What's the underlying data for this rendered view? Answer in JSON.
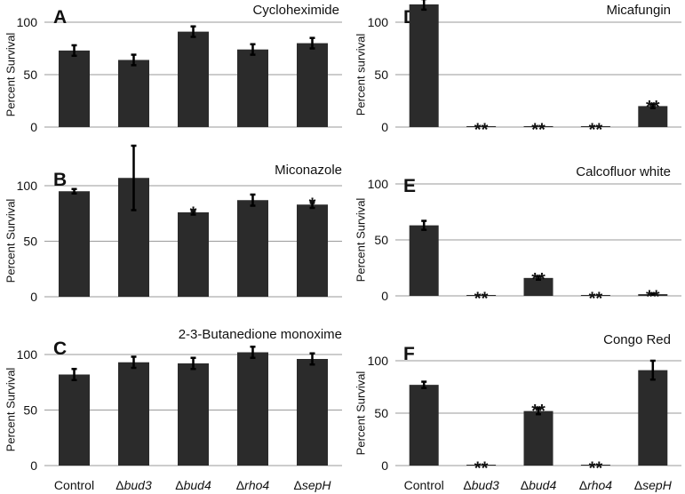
{
  "chart_data": [
    {
      "type": "bar",
      "panel": "A",
      "title": "Cycloheximide",
      "ylabel": "Percent Survival",
      "ylim": [
        0,
        100
      ],
      "yticks": [
        0,
        50,
        100
      ],
      "grid": true,
      "categories": [
        "Control",
        "Δbud3",
        "Δbud4",
        "Δrho4",
        "ΔsepH"
      ],
      "values": [
        73,
        64,
        91,
        74,
        80
      ],
      "errors": [
        5,
        5,
        5,
        5,
        5
      ],
      "significance": [
        "",
        "",
        "",
        "",
        ""
      ]
    },
    {
      "type": "bar",
      "panel": "B",
      "title": "Miconazole",
      "ylabel": "Percent Survival",
      "ylim": [
        0,
        100
      ],
      "yticks": [
        0,
        50,
        100
      ],
      "grid": true,
      "categories": [
        "Control",
        "Δbud3",
        "Δbud4",
        "Δrho4",
        "ΔsepH"
      ],
      "values": [
        95,
        107,
        76,
        87,
        83
      ],
      "errors": [
        2,
        29,
        2,
        5,
        3
      ],
      "significance": [
        "",
        "",
        "*",
        "",
        "*"
      ]
    },
    {
      "type": "bar",
      "panel": "C",
      "title": "2-3-Butanedione monoxime",
      "ylabel": "Percent Survival",
      "ylim": [
        0,
        100
      ],
      "yticks": [
        0,
        50,
        100
      ],
      "grid": true,
      "categories": [
        "Control",
        "Δbud3",
        "Δbud4",
        "Δrho4",
        "ΔsepH"
      ],
      "values": [
        82,
        93,
        92,
        102,
        96
      ],
      "errors": [
        5,
        5,
        5,
        5,
        5
      ],
      "significance": [
        "",
        "",
        "",
        "",
        ""
      ]
    },
    {
      "type": "bar",
      "panel": "D",
      "title": "Micafungin",
      "ylabel": "Percent survival",
      "ylim": [
        0,
        100
      ],
      "yticks": [
        0,
        50,
        100
      ],
      "grid": true,
      "categories": [
        "Control",
        "Δbud3",
        "Δbud4",
        "Δrho4",
        "ΔsepH"
      ],
      "values": [
        117,
        0.5,
        0.5,
        0.5,
        20
      ],
      "errors": [
        5,
        0,
        0,
        0,
        2
      ],
      "significance": [
        "",
        "**",
        "**",
        "**",
        "**"
      ]
    },
    {
      "type": "bar",
      "panel": "E",
      "title": "Calcofluor white",
      "ylabel": "Percent Survival",
      "ylim": [
        0,
        100
      ],
      "yticks": [
        0,
        50,
        100
      ],
      "grid": true,
      "categories": [
        "Control",
        "Δbud3",
        "Δbud4",
        "Δrho4",
        "ΔsepH"
      ],
      "values": [
        63,
        0.5,
        16,
        0.5,
        1.5
      ],
      "errors": [
        4,
        0,
        1.5,
        0,
        0.5
      ],
      "significance": [
        "",
        "**",
        "**",
        "**",
        "**"
      ]
    },
    {
      "type": "bar",
      "panel": "F",
      "title": "Congo Red",
      "ylabel": "Percent Survival",
      "ylim": [
        0,
        100
      ],
      "yticks": [
        0,
        50,
        100
      ],
      "grid": true,
      "categories": [
        "Control",
        "Δbud3",
        "Δbud4",
        "Δrho4",
        "ΔsepH"
      ],
      "values": [
        77,
        0.5,
        52,
        0.5,
        91
      ],
      "errors": [
        3,
        0,
        3,
        0,
        9
      ],
      "significance": [
        "",
        "**",
        "**",
        "**",
        ""
      ]
    }
  ],
  "x_axis": {
    "labels": [
      {
        "prefix": "",
        "text": "Control",
        "italic": false
      },
      {
        "prefix": "Δ",
        "text": "bud3",
        "italic": true
      },
      {
        "prefix": "Δ",
        "text": "bud4",
        "italic": true
      },
      {
        "prefix": "Δ",
        "text": "rho4",
        "italic": true
      },
      {
        "prefix": "Δ",
        "text": "sepH",
        "italic": true
      }
    ]
  },
  "colors": {
    "bar": "#2b2b2b",
    "error_bar": "#000000",
    "grid": "#9a9a9a",
    "axis": "#9a9a9a",
    "text": "#111111"
  }
}
